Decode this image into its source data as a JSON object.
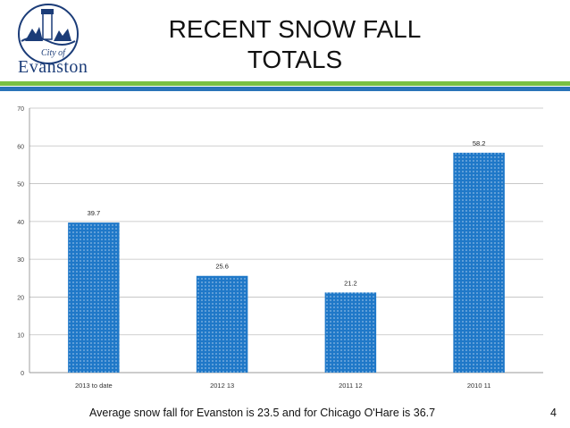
{
  "logo": {
    "small_text": "City of",
    "text": "Evanston"
  },
  "title": {
    "line1": "RECENT SNOW FALL",
    "line2": "TOTALS"
  },
  "colors": {
    "bar": "#1f78c8",
    "bar_dot": "#ffffff",
    "rule_green": "#79c043",
    "rule_blue": "#2a74b8"
  },
  "chart_data": {
    "type": "bar",
    "title": "",
    "xlabel": "",
    "ylabel": "",
    "categories": [
      "2013 to date",
      "2012 13",
      "2011 12",
      "2010 11"
    ],
    "values": [
      39.7,
      25.6,
      21.2,
      58.2
    ],
    "data_labels": [
      "39.7",
      "25.6",
      "21.2",
      "58.2"
    ],
    "ylim": [
      0,
      70
    ],
    "yticks": [
      0,
      10,
      20,
      30,
      40,
      50,
      60,
      70
    ],
    "grid": true,
    "legend": "none"
  },
  "footer": {
    "note": "Average snow fall for Evanston is 23.5  and for Chicago  O'Hare is 36.7",
    "page_number": "4"
  }
}
